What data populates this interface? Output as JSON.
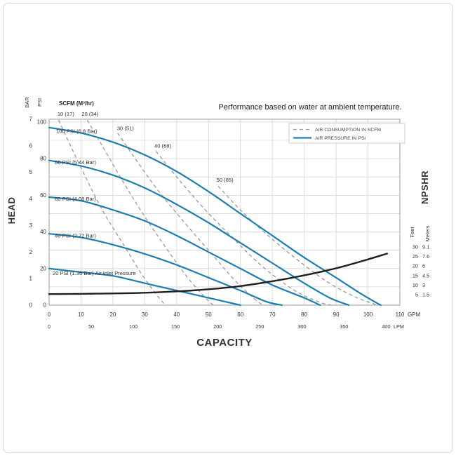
{
  "header": {
    "title": "Performance based on water at ambient temperature."
  },
  "plot": {
    "scfm_header": "SCFM (M³/hr)"
  },
  "legend": {
    "items": [
      {
        "style": "dashed",
        "label": "AIR CONSUMPTION IN SCFM"
      },
      {
        "style": "solid",
        "label": "AIR PRESSURE IN PSI"
      }
    ]
  },
  "axes": {
    "left": {
      "title": "HEAD",
      "bar_unit": "BAR",
      "psi_unit": "PSI",
      "bar_ticks": [
        7,
        6,
        5,
        4,
        3,
        2,
        1,
        0
      ],
      "psi_ticks": [
        100,
        80,
        60,
        40,
        20,
        0
      ]
    },
    "bottom": {
      "title": "CAPACITY",
      "gpm_unit": "GPM",
      "lpm_unit": "LPM",
      "gpm_ticks": [
        0,
        10,
        20,
        30,
        40,
        50,
        60,
        70,
        80,
        90,
        100,
        110
      ],
      "lpm_ticks": [
        0,
        50,
        100,
        150,
        200,
        250,
        300,
        350,
        400
      ]
    },
    "right": {
      "title": "NPSHR",
      "feet_unit": "Feet",
      "meters_unit": "Meters",
      "feet_ticks": [
        30,
        25,
        20,
        15,
        10,
        5
      ],
      "meters_ticks": [
        "9.1",
        "7.6",
        "6",
        "4.5",
        "3",
        "1.5"
      ]
    }
  },
  "colors": {
    "accent": "#1a7fb0",
    "pressure_curve": "#1a7fb0",
    "consumption_curve": "#999999",
    "npshr_curve": "#1f1f1f",
    "grid": "#dcdcdc",
    "plot_border": "#9a9a9a",
    "pressure_label": "#1b4e74",
    "consumption_label": "#2d7fb5"
  },
  "chart_data": {
    "type": "line",
    "title": "Performance based on water at ambient temperature.",
    "x_axis": {
      "label": "CAPACITY",
      "units": [
        "GPM",
        "LPM"
      ],
      "gpm_range": [
        0,
        110
      ],
      "lpm_range": [
        0,
        400
      ]
    },
    "y_axis_left": {
      "label": "HEAD",
      "units": [
        "PSI",
        "BAR"
      ],
      "psi_range": [
        0,
        101.5
      ],
      "bar_range": [
        0,
        7
      ]
    },
    "y_axis_right": {
      "label": "NPSHR",
      "units": [
        "Feet",
        "Meters"
      ],
      "feet_ticks": [
        5,
        10,
        15,
        20,
        25,
        30
      ],
      "meters_ticks": [
        1.5,
        3,
        4.5,
        6,
        7.6,
        9.1
      ]
    },
    "grid": true,
    "legend_position": "top-right",
    "air_pressure_curves_psi_vs_gpm": [
      {
        "label": "100 PSI (6.8 Bar)",
        "label_pos": [
          2.2,
          94
        ],
        "points": [
          [
            0,
            97
          ],
          [
            10,
            94
          ],
          [
            20,
            89
          ],
          [
            30,
            82
          ],
          [
            40,
            73
          ],
          [
            50,
            62
          ],
          [
            60,
            50
          ],
          [
            70,
            38
          ],
          [
            80,
            26
          ],
          [
            90,
            15
          ],
          [
            98,
            6
          ],
          [
            104,
            0
          ]
        ]
      },
      {
        "label": "80 PSI (5.44 Bar)",
        "label_pos": [
          1.8,
          77
        ],
        "points": [
          [
            0,
            79
          ],
          [
            10,
            76
          ],
          [
            20,
            71
          ],
          [
            30,
            64
          ],
          [
            40,
            55
          ],
          [
            50,
            45
          ],
          [
            60,
            34
          ],
          [
            70,
            23
          ],
          [
            80,
            12
          ],
          [
            88,
            4
          ],
          [
            94,
            0
          ]
        ]
      },
      {
        "label": "60 PSI (4.08 Bar)",
        "label_pos": [
          1.8,
          57
        ],
        "points": [
          [
            0,
            59
          ],
          [
            10,
            57
          ],
          [
            20,
            52
          ],
          [
            30,
            46
          ],
          [
            40,
            38
          ],
          [
            50,
            29
          ],
          [
            60,
            20
          ],
          [
            70,
            11
          ],
          [
            80,
            4
          ],
          [
            85,
            0
          ]
        ]
      },
      {
        "label": "40 PSI (2.72 Bar)",
        "label_pos": [
          1.8,
          37
        ],
        "points": [
          [
            0,
            39
          ],
          [
            10,
            37
          ],
          [
            20,
            33
          ],
          [
            30,
            28
          ],
          [
            40,
            22
          ],
          [
            50,
            15
          ],
          [
            60,
            8
          ],
          [
            68,
            2
          ],
          [
            73,
            0
          ]
        ]
      },
      {
        "label": "20 PSI (1.36 Bar) Air Inlet Pressure",
        "label_pos": [
          1.1,
          16.5
        ],
        "points": [
          [
            0,
            20
          ],
          [
            10,
            18
          ],
          [
            20,
            16
          ],
          [
            30,
            12
          ],
          [
            40,
            8
          ],
          [
            50,
            4
          ],
          [
            60,
            0
          ]
        ]
      }
    ],
    "air_consumption_curves_scfm": [
      {
        "label": "10 (17)",
        "label_pos": [
          2.6,
          103.5
        ],
        "points": [
          [
            3,
            101
          ],
          [
            7,
            86
          ],
          [
            12,
            68
          ],
          [
            17,
            51
          ],
          [
            23,
            34
          ],
          [
            29,
            17
          ],
          [
            34,
            5
          ],
          [
            36.5,
            0
          ]
        ]
      },
      {
        "label": "20 (34)",
        "label_pos": [
          10.2,
          103.5
        ],
        "points": [
          [
            12,
            101
          ],
          [
            17,
            86
          ],
          [
            23,
            68
          ],
          [
            29,
            51
          ],
          [
            36,
            33
          ],
          [
            43,
            16
          ],
          [
            49,
            4
          ],
          [
            51.5,
            0
          ]
        ]
      },
      {
        "label": "30 (51)",
        "label_pos": [
          21.3,
          95.5
        ],
        "points": [
          [
            21.5,
            94
          ],
          [
            27,
            80
          ],
          [
            34,
            63
          ],
          [
            42,
            46
          ],
          [
            50,
            30
          ],
          [
            58,
            14
          ],
          [
            64,
            4
          ],
          [
            67,
            0
          ]
        ]
      },
      {
        "label": "40 (68)",
        "label_pos": [
          33,
          86
        ],
        "points": [
          [
            33.5,
            84
          ],
          [
            41,
            68
          ],
          [
            49,
            52
          ],
          [
            58,
            36
          ],
          [
            67,
            21
          ],
          [
            77,
            8
          ],
          [
            85,
            1.5
          ],
          [
            88.5,
            0
          ]
        ]
      },
      {
        "label": "50 (85)",
        "label_pos": [
          52.5,
          67.5
        ],
        "points": [
          [
            53,
            65
          ],
          [
            60,
            52
          ],
          [
            68,
            39
          ],
          [
            77,
            26
          ],
          [
            87,
            13
          ],
          [
            96,
            4.5
          ],
          [
            103,
            0
          ]
        ]
      }
    ],
    "npshr_curve_feet_vs_gpm": {
      "points": [
        [
          0,
          5.3
        ],
        [
          15,
          5.5
        ],
        [
          30,
          6
        ],
        [
          45,
          7.2
        ],
        [
          60,
          9.5
        ],
        [
          75,
          13.5
        ],
        [
          88,
          18
        ],
        [
          98,
          22.5
        ],
        [
          106,
          26.5
        ]
      ]
    }
  }
}
